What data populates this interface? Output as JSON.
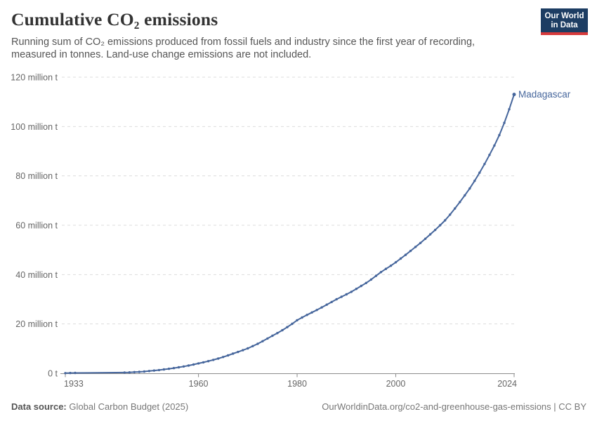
{
  "header": {
    "title": "Cumulative CO₂ emissions",
    "subtitle": "Running sum of CO₂ emissions produced from fossil fuels and industry since the first year of recording, measured in tonnes. Land-use change emissions are not included.",
    "logo": {
      "line1": "Our World",
      "line2": "in Data",
      "bg_color": "#1d3d63",
      "accent_color": "#d73a3c"
    }
  },
  "footer": {
    "source_label": "Data source:",
    "source_value": "Global Carbon Budget (2025)",
    "attribution": "OurWorldinData.org/co2-and-greenhouse-gas-emissions | CC BY"
  },
  "chart_data": {
    "type": "line",
    "title": "Cumulative CO₂ emissions",
    "xlabel": "",
    "ylabel": "",
    "x_range": [
      1933,
      2024
    ],
    "y_range": [
      0,
      120
    ],
    "grid": "dashed-horizontal",
    "legend_position": "end-of-line-label",
    "x_ticks": [
      1933,
      1960,
      1980,
      2000,
      2024
    ],
    "y_ticks": [
      {
        "value": 0,
        "label": "0 t"
      },
      {
        "value": 20,
        "label": "20 million t"
      },
      {
        "value": 40,
        "label": "40 million t"
      },
      {
        "value": 60,
        "label": "60 million t"
      },
      {
        "value": 80,
        "label": "80 million t"
      },
      {
        "value": 100,
        "label": "100 million t"
      },
      {
        "value": 120,
        "label": "120 million t"
      }
    ],
    "unit": "million t",
    "colors": {
      "line": "#46669c",
      "grid": "#dddddd",
      "axis": "#8c8c8c",
      "tick_text": "#666666"
    },
    "series": [
      {
        "name": "Madagascar",
        "color": "#46669c",
        "points": [
          [
            1933,
            0.05
          ],
          [
            1934,
            0.1
          ],
          [
            1935,
            0.15
          ],
          [
            1945,
            0.3
          ],
          [
            1946,
            0.38
          ],
          [
            1947,
            0.47
          ],
          [
            1948,
            0.58
          ],
          [
            1949,
            0.72
          ],
          [
            1950,
            0.9
          ],
          [
            1951,
            1.1
          ],
          [
            1952,
            1.32
          ],
          [
            1953,
            1.56
          ],
          [
            1954,
            1.82
          ],
          [
            1955,
            2.1
          ],
          [
            1956,
            2.42
          ],
          [
            1957,
            2.76
          ],
          [
            1958,
            3.14
          ],
          [
            1959,
            3.55
          ],
          [
            1960,
            4.0
          ],
          [
            1961,
            4.45
          ],
          [
            1962,
            4.92
          ],
          [
            1963,
            5.42
          ],
          [
            1964,
            5.98
          ],
          [
            1965,
            6.6
          ],
          [
            1966,
            7.25
          ],
          [
            1967,
            7.95
          ],
          [
            1968,
            8.65
          ],
          [
            1969,
            9.35
          ],
          [
            1970,
            10.1
          ],
          [
            1971,
            11.0
          ],
          [
            1972,
            11.95
          ],
          [
            1973,
            13.0
          ],
          [
            1974,
            14.1
          ],
          [
            1975,
            15.2
          ],
          [
            1976,
            16.3
          ],
          [
            1977,
            17.45
          ],
          [
            1978,
            18.7
          ],
          [
            1979,
            20.05
          ],
          [
            1980,
            21.5
          ],
          [
            1981,
            22.6
          ],
          [
            1982,
            23.65
          ],
          [
            1983,
            24.65
          ],
          [
            1984,
            25.65
          ],
          [
            1985,
            26.7
          ],
          [
            1986,
            27.8
          ],
          [
            1987,
            28.9
          ],
          [
            1988,
            30.0
          ],
          [
            1989,
            31.0
          ],
          [
            1990,
            32.0
          ],
          [
            1991,
            33.0
          ],
          [
            1992,
            34.2
          ],
          [
            1993,
            35.4
          ],
          [
            1994,
            36.6
          ],
          [
            1995,
            38.0
          ],
          [
            1996,
            39.5
          ],
          [
            1997,
            41.0
          ],
          [
            1998,
            42.3
          ],
          [
            1999,
            43.6
          ],
          [
            2000,
            45.0
          ],
          [
            2001,
            46.5
          ],
          [
            2002,
            48.0
          ],
          [
            2003,
            49.6
          ],
          [
            2004,
            51.2
          ],
          [
            2005,
            52.8
          ],
          [
            2006,
            54.5
          ],
          [
            2007,
            56.3
          ],
          [
            2008,
            58.1
          ],
          [
            2009,
            60.0
          ],
          [
            2010,
            62.0
          ],
          [
            2011,
            64.3
          ],
          [
            2012,
            66.8
          ],
          [
            2013,
            69.4
          ],
          [
            2014,
            72.1
          ],
          [
            2015,
            74.9
          ],
          [
            2016,
            78.0
          ],
          [
            2017,
            81.3
          ],
          [
            2018,
            84.8
          ],
          [
            2019,
            88.5
          ],
          [
            2020,
            92.3
          ],
          [
            2021,
            96.5
          ],
          [
            2022,
            101.5
          ],
          [
            2023,
            107.0
          ],
          [
            2024,
            113.0
          ]
        ]
      }
    ]
  }
}
